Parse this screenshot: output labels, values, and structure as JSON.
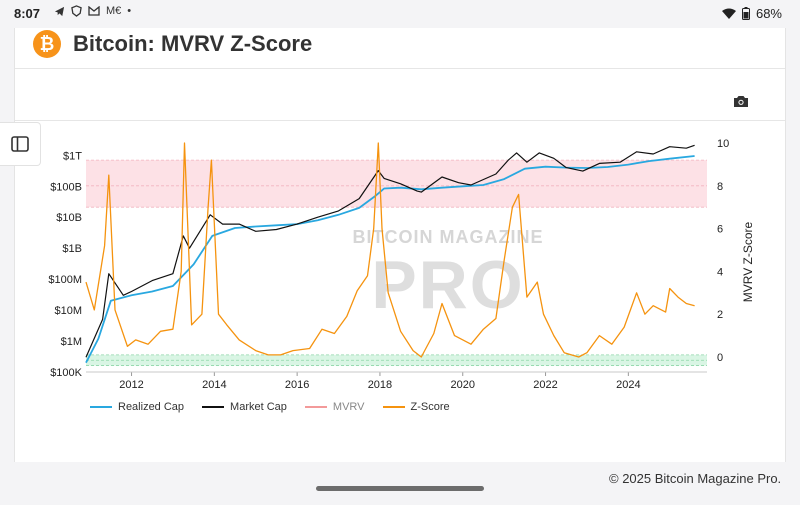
{
  "status": {
    "time": "8:07",
    "icons": [
      "telegram-icon",
      "shield-icon",
      "gmail-icon",
      "M€",
      "•"
    ],
    "battery": "68%"
  },
  "header": {
    "logo": "₿",
    "title": "Bitcoin: MVRV Z-Score"
  },
  "copyright": "© 2025 Bitcoin Magazine Pro.",
  "watermark": {
    "line1": "BITCOIN MAGAZINE",
    "line2": "PRO"
  },
  "colors": {
    "realized": "#29a8e0",
    "market": "#111111",
    "mvrv": "#f39a9a",
    "zscore": "#f5930f",
    "upper_band": "#fde1e6",
    "lower_band": "#d9f5e4"
  },
  "chart_data": {
    "type": "line",
    "title": "Bitcoin: MVRV Z-Score",
    "x_ticks": [
      "2012",
      "2014",
      "2016",
      "2018",
      "2020",
      "2022",
      "2024"
    ],
    "x_tick_values": [
      2012,
      2014,
      2016,
      2018,
      2020,
      2022,
      2024
    ],
    "xlim": [
      2010.9,
      2025.9
    ],
    "left_axis": {
      "scale": "log",
      "ticks": [
        "$100K",
        "$1M",
        "$10M",
        "$100M",
        "$1B",
        "$10B",
        "$100B",
        "$1T"
      ],
      "tick_values": [
        100000.0,
        1000000.0,
        10000000.0,
        100000000.0,
        1000000000.0,
        10000000000.0,
        100000000000.0,
        1000000000000.0
      ],
      "ylim": [
        100000.0,
        2500000000000.0
      ]
    },
    "right_axis": {
      "label": "MVRV Z-Score",
      "ticks": [
        "10",
        "8",
        "6",
        "4",
        "2",
        "0"
      ],
      "tick_values": [
        10,
        8,
        6,
        4,
        2,
        0
      ],
      "ylim": [
        -0.7,
        10
      ]
    },
    "bands": [
      {
        "name": "upper",
        "from": 7,
        "to": 9.2,
        "axis": "right"
      },
      {
        "name": "lower",
        "from": -0.4,
        "to": 0.1,
        "axis": "right"
      }
    ],
    "series": [
      {
        "name": "Realized Cap",
        "axis": "left",
        "x": [
          2010.9,
          2011.2,
          2011.5,
          2012.0,
          2012.5,
          2013.0,
          2013.5,
          2013.95,
          2014.5,
          2015.0,
          2015.5,
          2016.0,
          2016.5,
          2017.0,
          2017.5,
          2017.9,
          2018.1,
          2018.5,
          2019.0,
          2019.5,
          2020.0,
          2020.5,
          2021.0,
          2021.5,
          2022.0,
          2022.5,
          2023.0,
          2023.5,
          2024.0,
          2024.5,
          2025.0,
          2025.6
        ],
        "values": [
          200000.0,
          1200000.0,
          20000000.0,
          30000000.0,
          40000000.0,
          60000000.0,
          300000000.0,
          2500000000.0,
          4500000000.0,
          5000000000.0,
          5500000000.0,
          6000000000.0,
          8000000000.0,
          12000000000.0,
          20000000000.0,
          50000000000.0,
          85000000000.0,
          90000000000.0,
          80000000000.0,
          90000000000.0,
          100000000000.0,
          110000000000.0,
          170000000000.0,
          370000000000.0,
          430000000000.0,
          400000000000.0,
          390000000000.0,
          420000000000.0,
          500000000000.0,
          650000000000.0,
          780000000000.0,
          950000000000.0
        ]
      },
      {
        "name": "Market Cap",
        "axis": "left",
        "x": [
          2010.9,
          2011.3,
          2011.45,
          2011.8,
          2012.0,
          2012.5,
          2013.0,
          2013.25,
          2013.4,
          2013.9,
          2014.2,
          2014.6,
          2015.0,
          2015.5,
          2016.0,
          2016.5,
          2017.0,
          2017.5,
          2017.96,
          2018.1,
          2018.5,
          2018.9,
          2019.0,
          2019.5,
          2019.9,
          2020.2,
          2020.8,
          2021.1,
          2021.3,
          2021.55,
          2021.85,
          2022.2,
          2022.5,
          2022.9,
          2023.3,
          2023.8,
          2024.2,
          2024.6,
          2025.0,
          2025.4,
          2025.6
        ],
        "values": [
          300000.0,
          5000000.0,
          150000000.0,
          30000000.0,
          40000000.0,
          90000000.0,
          150000000.0,
          2500000000.0,
          1000000000.0,
          12000000000.0,
          6000000000.0,
          6000000000.0,
          3500000000.0,
          4000000000.0,
          6000000000.0,
          10000000000.0,
          16000000000.0,
          40000000000.0,
          320000000000.0,
          180000000000.0,
          120000000000.0,
          70000000000.0,
          65000000000.0,
          200000000000.0,
          130000000000.0,
          110000000000.0,
          250000000000.0,
          700000000000.0,
          1200000000000.0,
          600000000000.0,
          1200000000000.0,
          800000000000.0,
          400000000000.0,
          310000000000.0,
          550000000000.0,
          600000000000.0,
          1300000000000.0,
          1100000000000.0,
          1900000000000.0,
          1700000000000.0,
          2100000000000.0
        ]
      },
      {
        "name": "MVRV",
        "axis": "right",
        "x": [],
        "values": []
      },
      {
        "name": "Z-Score",
        "axis": "right",
        "x": [
          2010.9,
          2011.1,
          2011.35,
          2011.45,
          2011.6,
          2011.9,
          2012.1,
          2012.4,
          2012.7,
          2013.0,
          2013.2,
          2013.28,
          2013.45,
          2013.7,
          2013.85,
          2013.93,
          2014.1,
          2014.3,
          2014.6,
          2015.0,
          2015.3,
          2015.6,
          2015.9,
          2016.3,
          2016.6,
          2016.9,
          2017.2,
          2017.45,
          2017.7,
          2017.85,
          2017.96,
          2018.05,
          2018.2,
          2018.5,
          2018.8,
          2019.0,
          2019.3,
          2019.5,
          2019.8,
          2020.2,
          2020.5,
          2020.8,
          2021.0,
          2021.2,
          2021.35,
          2021.55,
          2021.8,
          2021.95,
          2022.2,
          2022.45,
          2022.8,
          2023.0,
          2023.3,
          2023.6,
          2023.9,
          2024.2,
          2024.4,
          2024.6,
          2024.9,
          2025.0,
          2025.2,
          2025.4,
          2025.6
        ],
        "values": [
          3.5,
          2.2,
          5.2,
          8.5,
          2.2,
          0.5,
          0.8,
          0.6,
          1.2,
          1.3,
          4.0,
          10.0,
          1.5,
          2.0,
          7.0,
          9.2,
          2.0,
          1.5,
          0.8,
          0.3,
          0.1,
          0.1,
          0.3,
          0.4,
          1.3,
          1.1,
          1.9,
          3.1,
          3.8,
          6.0,
          10.0,
          6.0,
          3.0,
          1.2,
          0.3,
          0.0,
          1.1,
          2.5,
          1.0,
          0.6,
          1.3,
          1.8,
          4.5,
          7.0,
          7.6,
          2.8,
          3.5,
          2.0,
          1.0,
          0.2,
          0.0,
          0.2,
          1.0,
          0.6,
          1.4,
          3.0,
          2.0,
          2.4,
          2.1,
          3.2,
          2.8,
          2.5,
          2.4
        ]
      }
    ],
    "legend": [
      "Realized Cap",
      "Market Cap",
      "MVRV",
      "Z-Score"
    ]
  }
}
